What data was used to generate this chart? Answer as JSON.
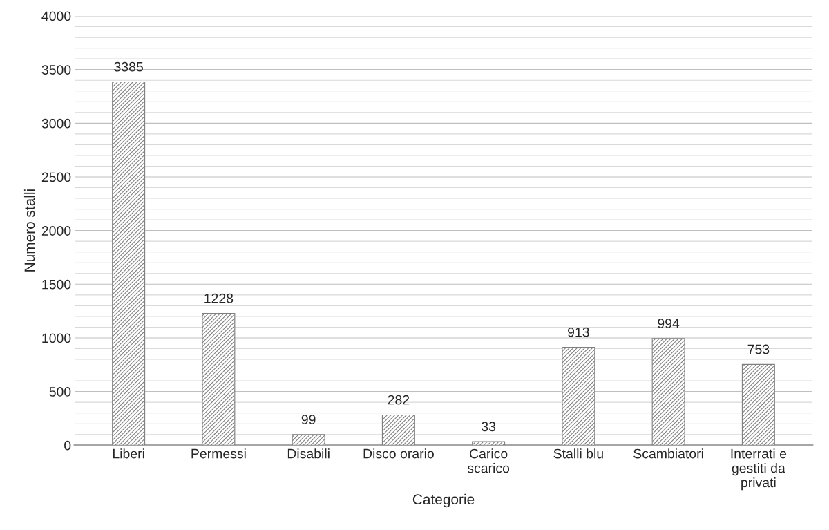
{
  "chart_data": {
    "type": "bar",
    "xlabel": "Categorie",
    "ylabel": "Numero stalli",
    "categories": [
      "Liberi",
      "Permessi",
      "Disabili",
      "Disco orario",
      "Carico scarico",
      "Stalli blu",
      "Scambiatori",
      "Interrati e gestiti da privati"
    ],
    "values": [
      3385,
      1228,
      99,
      282,
      33,
      913,
      994,
      753
    ],
    "color": "#7f7f7f",
    "ylim": [
      0,
      4000
    ],
    "yticks": [
      0,
      {
        "value": 100,
        "label": null
      },
      {
        "value": 200,
        "label": null
      },
      {
        "value": 300,
        "label": null
      },
      {
        "value": 400,
        "label": null
      },
      500,
      {
        "value": 600,
        "label": null
      },
      {
        "value": 700,
        "label": null
      },
      {
        "value": 800,
        "label": null
      },
      {
        "value": 900,
        "label": null
      },
      1000,
      {
        "value": 1100,
        "label": null
      },
      {
        "value": 1200,
        "label": null
      },
      {
        "value": 1300,
        "label": null
      },
      {
        "value": 1400,
        "label": null
      },
      1500,
      {
        "value": 1600,
        "label": null
      },
      {
        "value": 1700,
        "label": null
      },
      {
        "value": 1800,
        "label": null
      },
      {
        "value": 1900,
        "label": null
      },
      2000,
      {
        "value": 2100,
        "label": null
      },
      {
        "value": 2200,
        "label": null
      },
      {
        "value": 2300,
        "label": null
      },
      {
        "value": 2400,
        "label": null
      },
      2500,
      {
        "value": 2600,
        "label": null
      },
      {
        "value": 2700,
        "label": null
      },
      {
        "value": 2800,
        "label": null
      },
      {
        "value": 2900,
        "label": null
      },
      3000,
      {
        "value": 3100,
        "label": null
      },
      {
        "value": 3200,
        "label": null
      },
      {
        "value": 3300,
        "label": null
      },
      {
        "value": 3400,
        "label": null
      },
      3500,
      {
        "value": 3600,
        "label": null
      },
      {
        "value": 3700,
        "label": null
      },
      {
        "value": 3800,
        "label": null
      },
      {
        "value": 3900,
        "label": null
      },
      4000
    ],
    "grid": "y",
    "data_labels": true
  }
}
